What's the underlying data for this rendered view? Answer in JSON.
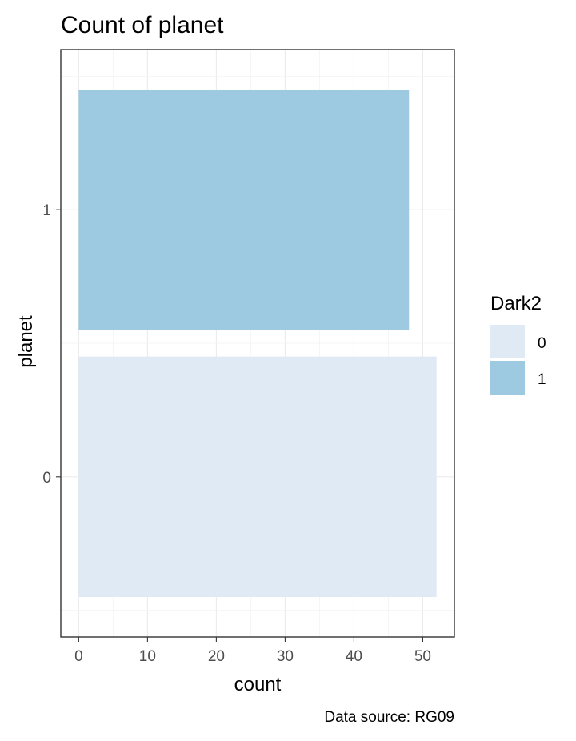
{
  "chart_data": {
    "type": "bar",
    "orientation": "horizontal",
    "title": "Count of planet",
    "xlabel": "count",
    "ylabel": "planet",
    "caption": "Data source: RG09",
    "categories": [
      "0",
      "1"
    ],
    "values": [
      52,
      48
    ],
    "colors": [
      "#dfeaf5",
      "#9ecae1"
    ],
    "xlim": [
      -2.6,
      54.6
    ],
    "xticks": [
      0,
      10,
      20,
      30,
      40,
      50
    ],
    "grid": true,
    "legend": {
      "title": "Dark2",
      "position": "right",
      "entries": [
        {
          "label": "0",
          "color": "#dfeaf5"
        },
        {
          "label": "1",
          "color": "#9ecae1"
        }
      ]
    }
  }
}
